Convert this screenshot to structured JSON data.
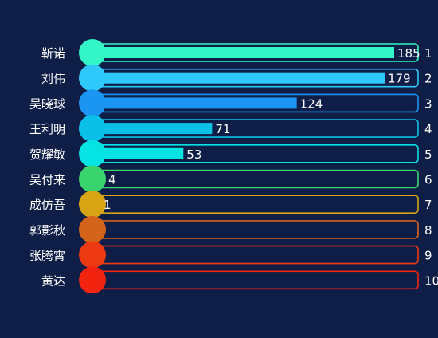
{
  "chart_data": {
    "type": "bar",
    "orientation": "horizontal",
    "categories": [
      "靳诺",
      "刘伟",
      "吴晓球",
      "王利明",
      "贺耀敏",
      "吴付来",
      "成仿吾",
      "郭影秋",
      "张腾霄",
      "黄达"
    ],
    "values": [
      185,
      179,
      124,
      71,
      53,
      4,
      1,
      0,
      0,
      0
    ],
    "ranks": [
      "1",
      "2",
      "3",
      "4",
      "5",
      "6",
      "7",
      "8",
      "9",
      "10"
    ],
    "value_labels": [
      "185",
      "179",
      "124",
      "71",
      "53",
      "4",
      "1",
      "",
      "",
      ""
    ],
    "xlim": [
      0,
      185
    ],
    "grid": false,
    "legend": "none",
    "colors": [
      "#34f5c6",
      "#2ec8fb",
      "#1a96f2",
      "#0bc0e6",
      "#06e3e3",
      "#3ad46e",
      "#d7a514",
      "#d4631c",
      "#ee3a12",
      "#f2230f"
    ],
    "background": "#0e1e47"
  }
}
